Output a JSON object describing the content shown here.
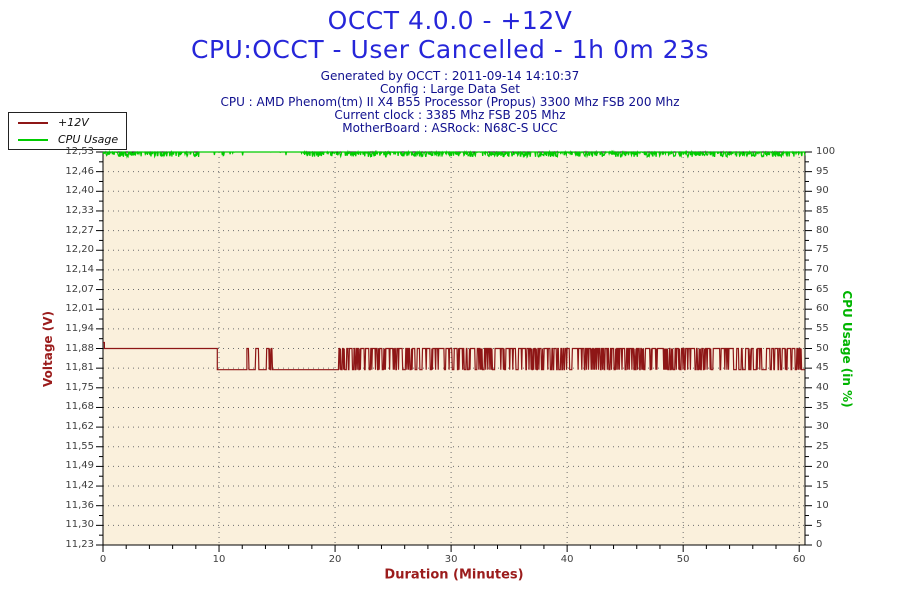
{
  "header": {
    "title_line1": "OCCT 4.0.0 - +12V",
    "title_line2": "CPU:OCCT - User Cancelled - 1h 0m 23s",
    "title_color": "#2626d9",
    "info_color": "#10108e",
    "info_lines": [
      "Generated by OCCT : 2011-09-14 14:10:37",
      "Config : Large Data Set",
      "CPU : AMD Phenom(tm) II X4 B55 Processor (Propus) 3300 Mhz FSB 200 Mhz",
      "Current clock : 3385 Mhz FSB 205 Mhz",
      "MotherBoard : ASRock: N68C-S UCC"
    ]
  },
  "legend": {
    "items": [
      {
        "label": "+12V",
        "color": "#8e1616"
      },
      {
        "label": "CPU Usage",
        "color": "#00cc00"
      }
    ]
  },
  "chart_data": {
    "type": "line",
    "title": "OCCT 4.0.0 - +12V",
    "plot_bg": "#faf0dc",
    "grid_color": "#6e6e6e",
    "grid_style": "dotted",
    "legend_position": "top-left",
    "x_label": "Duration (Minutes)",
    "x_color": "#9b1c1c",
    "x_range": [
      0,
      60.5
    ],
    "x_major_ticks": [
      0,
      10,
      20,
      30,
      40,
      50,
      60
    ],
    "x_tick_labels": [
      "0",
      "10",
      "20",
      "30",
      "40",
      "50",
      "60"
    ],
    "x_minor_step": 2,
    "y_left": {
      "label": "Voltage (V)",
      "color": "#9b1c1c",
      "range": [
        11.23,
        12.53
      ],
      "major_step": 0.065,
      "tick_labels": [
        "12,53",
        "12,46",
        "12,40",
        "12,33",
        "12,27",
        "12,20",
        "12,14",
        "12,07",
        "12,01",
        "11,94",
        "11,88",
        "11,81",
        "11,75",
        "11,68",
        "11,62",
        "11,55",
        "11,49",
        "11,42",
        "11,36",
        "11,30",
        "11,23"
      ]
    },
    "y_right": {
      "label": "CPU Usage (in %)",
      "color": "#00b400",
      "range": [
        0,
        100
      ],
      "major_step": 5,
      "tick_labels": [
        "100",
        "95",
        "90",
        "85",
        "80",
        "75",
        "70",
        "65",
        "60",
        "55",
        "50",
        "45",
        "40",
        "35",
        "30",
        "25",
        "20",
        "15",
        "10",
        "5",
        "0"
      ]
    },
    "series": [
      {
        "name": "+12V",
        "axis": "left",
        "color": "#8e1616",
        "description": "Flat at 11.88 V until ~10 min, drops to 11.81 V, sparse bursts 11.81-11.88 V between ~12.4-16.5 min, dense square noise 11.81-11.88 V from ~20 min to end",
        "segments": [
          {
            "type": "flat",
            "from": 0,
            "to": 0.12,
            "value": 11.9
          },
          {
            "type": "flat",
            "from": 0.12,
            "to": 9.85,
            "value": 11.88
          },
          {
            "type": "flat",
            "from": 9.85,
            "to": 12.4,
            "value": 11.81
          },
          {
            "type": "telegraph",
            "from": 12.4,
            "to": 15.05,
            "low": 11.81,
            "high": 11.88,
            "p_up": 0.1,
            "p_down": 0.35
          },
          {
            "type": "flat",
            "from": 15.05,
            "to": 15.95,
            "value": 11.81
          },
          {
            "type": "telegraph",
            "from": 15.95,
            "to": 16.55,
            "low": 11.81,
            "high": 11.88,
            "p_up": 0.12,
            "p_down": 0.35
          },
          {
            "type": "flat",
            "from": 16.55,
            "to": 20.2,
            "value": 11.81
          },
          {
            "type": "telegraph",
            "from": 20.2,
            "to": 60.5,
            "low": 11.81,
            "high": 11.88,
            "p_up": 0.5,
            "p_down": 0.28
          }
        ]
      },
      {
        "name": "CPU Usage",
        "axis": "right",
        "color": "#00cc00",
        "description": "Hugging 100% for the whole run with ~1% downward noise; cleaner (near-constant 100%) between ~8-17 min",
        "segments": [
          {
            "type": "spikes",
            "from": 0,
            "to": 8.3,
            "base": 100,
            "max_dip": 1.25,
            "dip_prob": 0.5
          },
          {
            "type": "spikes",
            "from": 8.3,
            "to": 17.2,
            "base": 100,
            "max_dip": 1.0,
            "dip_prob": 0.06
          },
          {
            "type": "spikes",
            "from": 17.2,
            "to": 60.5,
            "base": 100,
            "max_dip": 1.25,
            "dip_prob": 0.55
          }
        ]
      }
    ]
  }
}
